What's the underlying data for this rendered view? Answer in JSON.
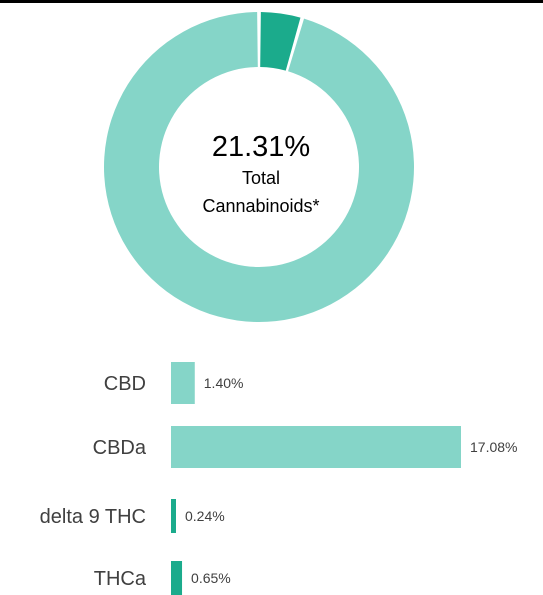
{
  "donut": {
    "total_value": "21.31%",
    "total_label_line1": "Total",
    "total_label_line2": "Cannabinoids*",
    "highlight_fraction": 0.045,
    "colors": {
      "main": "#85d5c8",
      "highlight": "#1bab8c"
    }
  },
  "chart_data": {
    "type": "bar",
    "orientation": "horizontal",
    "categories": [
      "CBD",
      "CBDa",
      "delta 9 THC",
      "THCa"
    ],
    "values": [
      1.4,
      17.08,
      0.24,
      0.65
    ],
    "value_labels": [
      "1.40%",
      "17.08%",
      "0.24%",
      "0.65%"
    ],
    "colors": [
      "#85d5c8",
      "#85d5c8",
      "#1bab8c",
      "#1bab8c"
    ],
    "xlim": [
      0,
      17.08
    ],
    "grid": false,
    "legend": "none"
  }
}
